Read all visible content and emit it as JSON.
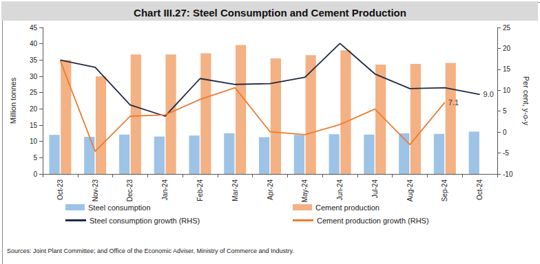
{
  "chart_data": {
    "type": "bar",
    "title": "Chart III.27: Steel Consumption and Cement Production",
    "source": "Sources: Joint Plant Committee; and Office of the Economic Adviser, Ministry of Commerce and Industry.",
    "y_label": "Million tonnes",
    "y2_label": "Per cent, y-o-y",
    "categories": [
      "Oct-23",
      "Nov-23",
      "Dec-23",
      "Jan-24",
      "Feb-24",
      "Mar-24",
      "Apr-24",
      "May-24",
      "Jun-24",
      "Jul-24",
      "Aug-24",
      "Sep-24",
      "Oct-24"
    ],
    "ylim": [
      0,
      45
    ],
    "yticks": [
      0,
      5,
      10,
      15,
      20,
      25,
      30,
      35,
      40,
      45
    ],
    "y2lim": [
      -10,
      25
    ],
    "y2ticks": [
      -10,
      -5,
      0,
      5,
      10,
      15,
      20,
      25
    ],
    "grid": false,
    "legend": "bottom",
    "series": [
      {
        "name": "Steel consumption",
        "type": "bar",
        "color": "#9dc3e6",
        "values": [
          12.0,
          11.4,
          12.1,
          11.5,
          11.8,
          12.5,
          11.3,
          12.0,
          12.2,
          12.1,
          12.5,
          12.3,
          13.0
        ]
      },
      {
        "name": "Cement production",
        "type": "bar",
        "color": "#f4b183",
        "values": [
          35.0,
          30.0,
          36.7,
          36.7,
          37.1,
          39.6,
          35.5,
          36.5,
          38.0,
          33.6,
          33.8,
          34.1,
          null
        ]
      },
      {
        "name": "Steel consumption growth (RHS)",
        "type": "line",
        "axis": "y2",
        "color": "#1f2a44",
        "line_style": "solid",
        "values": [
          17.2,
          15.5,
          6.5,
          3.8,
          12.8,
          11.4,
          11.6,
          13.1,
          21.2,
          13.9,
          10.4,
          10.6,
          9.0
        ],
        "value_labels": [
          null,
          null,
          null,
          null,
          null,
          null,
          null,
          null,
          null,
          null,
          null,
          null,
          "9.0"
        ]
      },
      {
        "name": "Cement production growth (RHS)",
        "type": "line",
        "axis": "y2",
        "color": "#ed7d31",
        "line_style": "solid",
        "values": [
          17.1,
          -4.6,
          3.8,
          4.1,
          7.8,
          10.6,
          0.1,
          -0.6,
          1.8,
          5.5,
          -3.0,
          7.1,
          null
        ],
        "value_labels": [
          null,
          null,
          null,
          null,
          null,
          null,
          null,
          null,
          null,
          null,
          null,
          "7.1",
          null
        ]
      }
    ]
  }
}
